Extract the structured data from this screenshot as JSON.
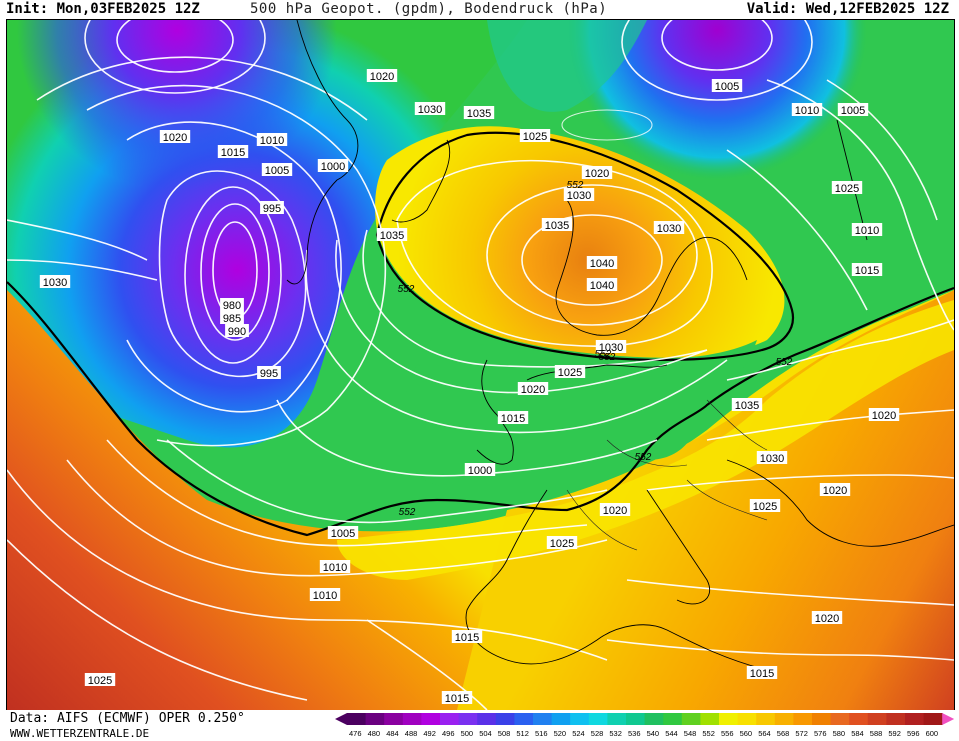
{
  "header": {
    "init": "Init: Mon,03FEB2025 12Z",
    "title": "500 hPa Geopot. (gpdm), Bodendruck (hPa)",
    "valid": "Valid: Wed,12FEB2025 12Z"
  },
  "footer": {
    "data_source": "Data: AIFS (ECMWF) OPER 0.250°",
    "website": "WWW.WETTERZENTRALE.DE"
  },
  "legend": {
    "values": [
      "476",
      "480",
      "484",
      "488",
      "492",
      "496",
      "500",
      "504",
      "508",
      "512",
      "516",
      "520",
      "524",
      "528",
      "532",
      "536",
      "540",
      "544",
      "548",
      "552",
      "556",
      "560",
      "564",
      "568",
      "572",
      "576",
      "580",
      "584",
      "588",
      "592",
      "596",
      "600"
    ],
    "colors": [
      "#4b0060",
      "#6a0080",
      "#8a00a0",
      "#a000c0",
      "#b000e0",
      "#9a20f0",
      "#7a30f0",
      "#5a30e8",
      "#3a40e8",
      "#2a60f0",
      "#2080f0",
      "#10a0f0",
      "#10c0f0",
      "#10d8e0",
      "#10d0b0",
      "#10c890",
      "#20c060",
      "#30c840",
      "#60d020",
      "#a0e000",
      "#f0f000",
      "#f8e000",
      "#f8c800",
      "#f8b000",
      "#f89800",
      "#f08000",
      "#e86820",
      "#e05020",
      "#d04020",
      "#c03020",
      "#b02020",
      "#a01818"
    ]
  },
  "pressure_labels": [
    "1025",
    "1020",
    "1005",
    "1010",
    "1030",
    "1035",
    "1020",
    "1015",
    "1010",
    "1005",
    "1000",
    "1025",
    "995",
    "1030",
    "1030",
    "980",
    "985",
    "990",
    "995",
    "1020",
    "1030",
    "1035",
    "1040",
    "1040",
    "1035",
    "1030",
    "1025",
    "1020",
    "1015",
    "1000",
    "1005",
    "1010",
    "1010",
    "1015",
    "1025",
    "1015",
    "1020",
    "1025",
    "1035",
    "1030",
    "1020",
    "1025",
    "1020",
    "1015",
    "1005",
    "1010",
    "1015",
    "1020",
    "1025"
  ],
  "height_labels": [
    "552",
    "552",
    "552",
    "552",
    "552",
    "552",
    "552"
  ]
}
